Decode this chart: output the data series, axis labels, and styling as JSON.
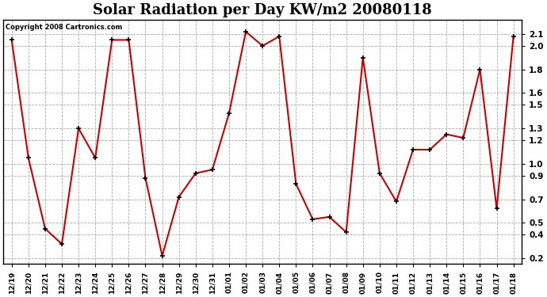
{
  "title": "Solar Radiation per Day KW/m2 20080118",
  "copyright_text": "Copyright 2008 Cartronics.com",
  "labels": [
    "12/19",
    "12/20",
    "12/21",
    "12/22",
    "12/23",
    "12/24",
    "12/25",
    "12/26",
    "12/27",
    "12/28",
    "12/29",
    "12/30",
    "12/31",
    "01/01",
    "01/02",
    "01/03",
    "01/04",
    "01/05",
    "01/06",
    "01/07",
    "01/08",
    "01/09",
    "01/10",
    "01/11",
    "01/12",
    "01/13",
    "01/14",
    "01/15",
    "01/16",
    "01/17",
    "01/18"
  ],
  "values": [
    2.05,
    1.05,
    0.45,
    0.32,
    1.3,
    1.05,
    2.05,
    2.05,
    0.88,
    0.22,
    0.72,
    0.92,
    0.95,
    1.43,
    2.12,
    2.0,
    2.08,
    0.83,
    0.53,
    0.55,
    0.42,
    1.9,
    0.92,
    0.68,
    1.12,
    1.12,
    1.25,
    1.22,
    1.8,
    0.62,
    2.08
  ],
  "line_color": "#cc0000",
  "marker_color": "#000000",
  "bg_color": "#ffffff",
  "plot_bg_color": "#ffffff",
  "grid_color": "#aaaaaa",
  "title_fontsize": 13,
  "ylim": [
    0.15,
    2.22
  ],
  "yticks": [
    0.2,
    0.4,
    0.5,
    0.7,
    0.9,
    1.0,
    1.2,
    1.3,
    1.5,
    1.6,
    1.8,
    2.0,
    2.1
  ]
}
